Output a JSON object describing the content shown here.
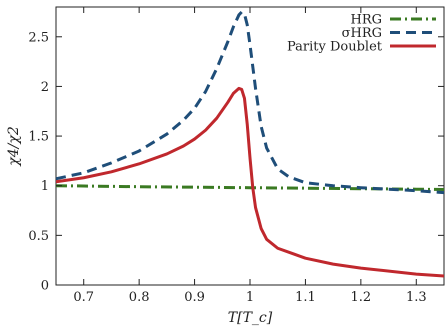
{
  "chart_data": {
    "type": "line",
    "title": "",
    "xlabel": "T[T_c]",
    "ylabel": "χ4/χ2",
    "xlim": [
      0.65,
      1.35
    ],
    "ylim": [
      0,
      2.8
    ],
    "xticks": [
      0.7,
      0.8,
      0.9,
      1,
      1.1,
      1.2,
      1.3
    ],
    "xtick_labels": [
      "0.7",
      "0.8",
      "0.9",
      "1",
      "1.1",
      "1.2",
      "1.3"
    ],
    "yticks": [
      0,
      0.5,
      1,
      1.5,
      2,
      2.5
    ],
    "ytick_labels": [
      "0",
      "0.5",
      "1",
      "1.5",
      "2",
      "2.5"
    ],
    "grid": false,
    "legend_position": "top-right",
    "series": [
      {
        "name": "HRG",
        "color": "#3a7a22",
        "style": "dash-dot",
        "x": [
          0.65,
          0.7,
          0.8,
          0.9,
          1.0,
          1.1,
          1.2,
          1.3,
          1.35
        ],
        "y": [
          1.0,
          0.997,
          0.99,
          0.985,
          0.98,
          0.975,
          0.97,
          0.965,
          0.962
        ]
      },
      {
        "name": "σHRG",
        "color": "#1f4e79",
        "style": "dashed",
        "x": [
          0.65,
          0.7,
          0.75,
          0.8,
          0.85,
          0.88,
          0.9,
          0.92,
          0.94,
          0.96,
          0.97,
          0.98,
          0.985,
          0.99,
          0.995,
          1.0,
          1.01,
          1.02,
          1.03,
          1.05,
          1.07,
          1.1,
          1.15,
          1.2,
          1.3,
          1.35
        ],
        "y": [
          1.07,
          1.13,
          1.23,
          1.35,
          1.52,
          1.66,
          1.78,
          1.95,
          2.18,
          2.45,
          2.6,
          2.72,
          2.75,
          2.73,
          2.62,
          2.42,
          1.98,
          1.6,
          1.38,
          1.17,
          1.09,
          1.03,
          1.0,
          0.98,
          0.95,
          0.93
        ]
      },
      {
        "name": "Parity Doublet",
        "color": "#c0282d",
        "style": "solid",
        "x": [
          0.65,
          0.7,
          0.75,
          0.8,
          0.85,
          0.88,
          0.9,
          0.92,
          0.94,
          0.96,
          0.97,
          0.98,
          0.985,
          0.99,
          0.995,
          1.0,
          1.005,
          1.01,
          1.02,
          1.03,
          1.05,
          1.08,
          1.1,
          1.15,
          1.2,
          1.3,
          1.35
        ],
        "y": [
          1.04,
          1.08,
          1.14,
          1.22,
          1.32,
          1.4,
          1.47,
          1.56,
          1.68,
          1.84,
          1.93,
          1.98,
          1.97,
          1.88,
          1.62,
          1.28,
          0.98,
          0.78,
          0.57,
          0.46,
          0.37,
          0.31,
          0.27,
          0.21,
          0.17,
          0.11,
          0.09
        ]
      }
    ]
  }
}
